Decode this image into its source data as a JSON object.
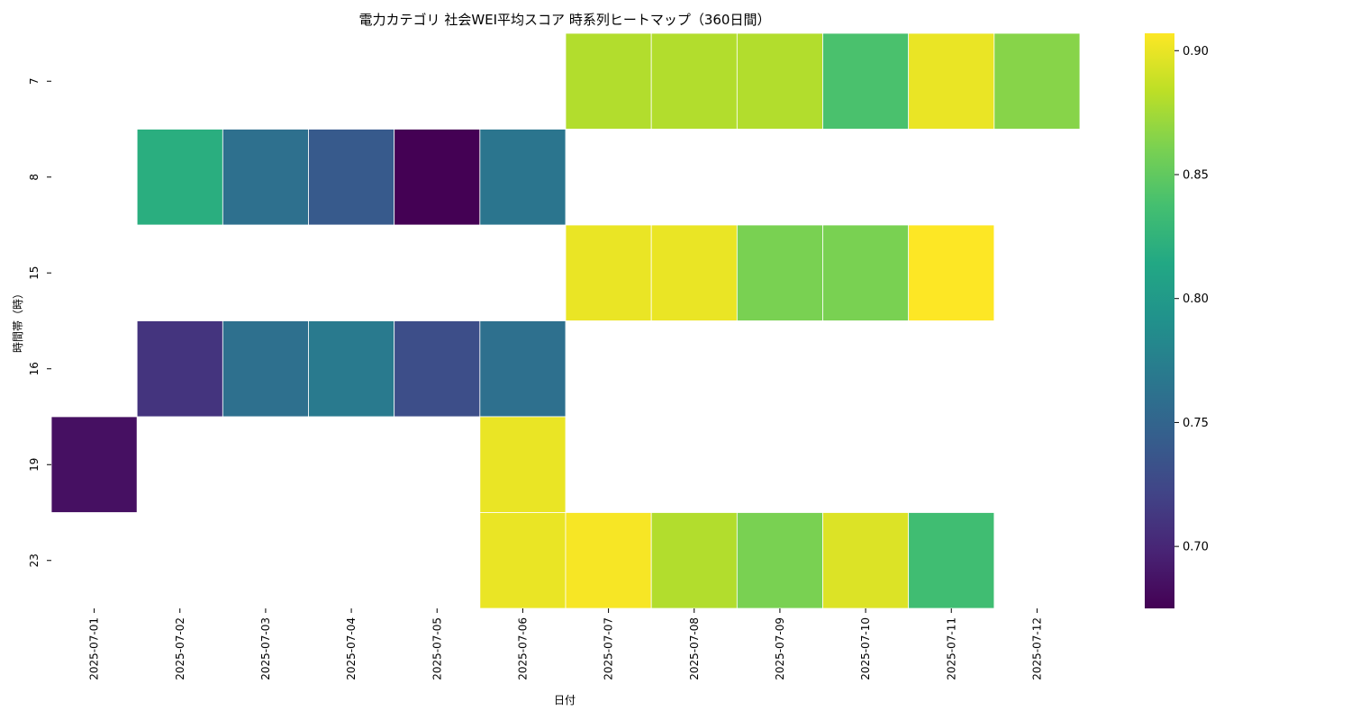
{
  "chart_data": {
    "type": "heatmap",
    "title": "電力カテゴリ 社会WEI平均スコア 時系列ヒートマップ（360日間）",
    "xlabel": "日付",
    "ylabel": "時間帯（時）",
    "x": [
      "2025-07-01",
      "2025-07-02",
      "2025-07-03",
      "2025-07-04",
      "2025-07-05",
      "2025-07-06",
      "2025-07-07",
      "2025-07-08",
      "2025-07-09",
      "2025-07-10",
      "2025-07-11",
      "2025-07-12"
    ],
    "y": [
      "7",
      "8",
      "15",
      "16",
      "19",
      "23"
    ],
    "values": [
      [
        null,
        null,
        null,
        null,
        null,
        null,
        0.88,
        0.88,
        0.88,
        0.84,
        0.9,
        0.865
      ],
      [
        null,
        0.82,
        0.76,
        0.74,
        0.675,
        0.765,
        null,
        null,
        null,
        null,
        null,
        null
      ],
      [
        null,
        null,
        null,
        null,
        null,
        null,
        0.9,
        0.9,
        0.86,
        0.86,
        0.907,
        null
      ],
      [
        null,
        0.71,
        0.76,
        0.77,
        0.73,
        0.76,
        null,
        null,
        null,
        null,
        null,
        null
      ],
      [
        0.685,
        null,
        null,
        null,
        null,
        0.9,
        null,
        null,
        null,
        null,
        null,
        null
      ],
      [
        null,
        null,
        null,
        null,
        null,
        0.9,
        0.905,
        0.88,
        0.86,
        0.895,
        0.835,
        null
      ]
    ],
    "colormap": "viridis",
    "vmin": 0.675,
    "vmax": 0.907,
    "colorbar_ticks": [
      "0.70",
      "0.75",
      "0.80",
      "0.85",
      "0.90"
    ],
    "colorbar_tick_values": [
      0.7,
      0.75,
      0.8,
      0.85,
      0.9
    ],
    "grid": false,
    "cell_border_color": "#ffffff",
    "axis_color": "#000000"
  }
}
